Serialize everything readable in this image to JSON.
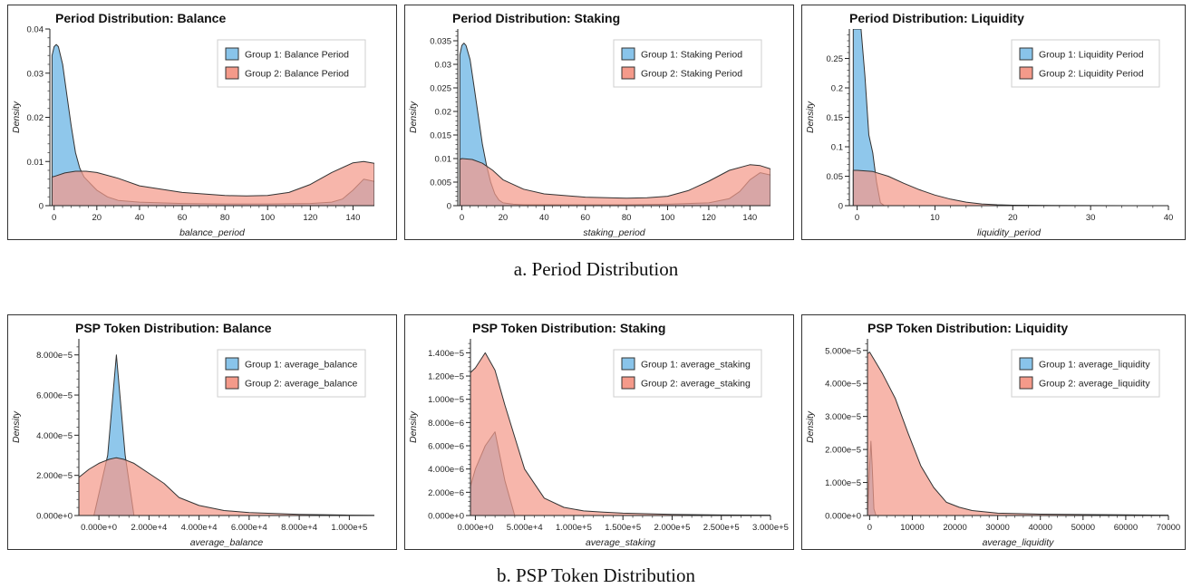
{
  "captions": {
    "top": "a. Period Distribution",
    "bottom": "b. PSP Token Distribution"
  },
  "colors": {
    "group1": "#89c4ea",
    "group2": "#f49a8a",
    "overlap": "#a88584"
  },
  "chart_data": [
    {
      "type": "area",
      "title": "Period Distribution: Balance",
      "xlabel": "balance_period",
      "ylabel": "Density",
      "xlim": [
        -2,
        150
      ],
      "ylim": [
        0,
        0.04
      ],
      "xticks": [
        0,
        20,
        40,
        60,
        80,
        100,
        120,
        140
      ],
      "xtick_labels": [
        "0",
        "20",
        "40",
        "60",
        "80",
        "100",
        "120",
        "140"
      ],
      "yticks": [
        0,
        0.01,
        0.02,
        0.03,
        0.04
      ],
      "ytick_labels": [
        "0",
        "0.01",
        "0.02",
        "0.03",
        "0.04"
      ],
      "legend": "top-right",
      "series": [
        {
          "name": "Group 1: Balance Period",
          "x": [
            -1,
            0,
            1,
            2,
            4,
            6,
            8,
            10,
            12,
            14,
            16,
            18,
            20,
            25,
            30,
            40,
            60,
            80,
            100,
            120,
            130,
            135,
            140,
            145,
            150
          ],
          "y": [
            0.034,
            0.036,
            0.0365,
            0.036,
            0.032,
            0.025,
            0.018,
            0.012,
            0.0085,
            0.0065,
            0.0055,
            0.0045,
            0.0035,
            0.002,
            0.0012,
            0.0008,
            0.0005,
            0.0004,
            0.0004,
            0.0005,
            0.0008,
            0.0015,
            0.0035,
            0.006,
            0.0055
          ]
        },
        {
          "name": "Group 2: Balance Period",
          "x": [
            -1,
            0,
            5,
            10,
            15,
            20,
            30,
            40,
            60,
            80,
            90,
            100,
            110,
            120,
            130,
            140,
            145,
            150
          ],
          "y": [
            0.0065,
            0.0066,
            0.0074,
            0.0078,
            0.0078,
            0.0075,
            0.0062,
            0.0045,
            0.003,
            0.0023,
            0.0022,
            0.0023,
            0.003,
            0.0048,
            0.0075,
            0.0097,
            0.01,
            0.0096
          ]
        }
      ]
    },
    {
      "type": "area",
      "title": "Period Distribution: Staking",
      "xlabel": "staking_period",
      "ylabel": "Density",
      "xlim": [
        -2,
        150
      ],
      "ylim": [
        0,
        0.0375
      ],
      "xticks": [
        0,
        20,
        40,
        60,
        80,
        100,
        120,
        140
      ],
      "xtick_labels": [
        "0",
        "20",
        "40",
        "60",
        "80",
        "100",
        "120",
        "140"
      ],
      "yticks": [
        0,
        0.005,
        0.01,
        0.015,
        0.02,
        0.025,
        0.03,
        0.035
      ],
      "ytick_labels": [
        "0",
        "0.005",
        "0.01",
        "0.015",
        "0.02",
        "0.025",
        "0.03",
        "0.035"
      ],
      "legend": "top-right",
      "series": [
        {
          "name": "Group 1: Staking Period",
          "x": [
            -1,
            0,
            1,
            2,
            4,
            6,
            8,
            10,
            12,
            14,
            16,
            18,
            20,
            25,
            30,
            40,
            60,
            80,
            100,
            120,
            130,
            135,
            140,
            145,
            150
          ],
          "y": [
            0.032,
            0.034,
            0.0345,
            0.034,
            0.031,
            0.025,
            0.019,
            0.013,
            0.0085,
            0.005,
            0.0025,
            0.0012,
            0.0006,
            0.0003,
            0.0002,
            0.0002,
            0.0002,
            0.0002,
            0.0003,
            0.0006,
            0.0015,
            0.003,
            0.0055,
            0.007,
            0.0065
          ]
        },
        {
          "name": "Group 2: Staking Period",
          "x": [
            -1,
            0,
            5,
            10,
            15,
            20,
            30,
            40,
            60,
            80,
            90,
            100,
            110,
            120,
            130,
            140,
            145,
            150
          ],
          "y": [
            0.0098,
            0.01,
            0.0098,
            0.009,
            0.0075,
            0.0055,
            0.0035,
            0.0025,
            0.0018,
            0.0016,
            0.0017,
            0.002,
            0.0032,
            0.0052,
            0.0075,
            0.0087,
            0.0085,
            0.0078
          ]
        }
      ]
    },
    {
      "type": "area",
      "title": "Period Distribution: Liquidity",
      "xlabel": "liquidity_period",
      "ylabel": "Density",
      "xlim": [
        -1,
        40
      ],
      "ylim": [
        0,
        0.3
      ],
      "xticks": [
        0,
        10,
        20,
        30,
        40
      ],
      "xtick_labels": [
        "0",
        "10",
        "20",
        "30",
        "40"
      ],
      "yticks": [
        0,
        0.05,
        0.1,
        0.15,
        0.2,
        0.25
      ],
      "ytick_labels": [
        "0",
        "0.05",
        "0.1",
        "0.15",
        "0.2",
        "0.25"
      ],
      "legend": "top-right",
      "series": [
        {
          "name": "Group 1: Liquidity Period",
          "x": [
            -0.5,
            0,
            0.5,
            1,
            1.5,
            2,
            2.5,
            3,
            3.5,
            5,
            40
          ],
          "y": [
            0.3,
            0.3,
            0.3,
            0.22,
            0.12,
            0.09,
            0.04,
            0.005,
            0.0,
            0.0,
            0.0
          ]
        },
        {
          "name": "Group 2: Liquidity Period",
          "x": [
            -0.5,
            0,
            2,
            4,
            6,
            8,
            10,
            12,
            14,
            16,
            18,
            20,
            25,
            30,
            35,
            40
          ],
          "y": [
            0.06,
            0.06,
            0.058,
            0.05,
            0.038,
            0.027,
            0.018,
            0.011,
            0.006,
            0.003,
            0.0015,
            0.0008,
            0.0003,
            0.0001,
            0.0,
            0.0
          ]
        }
      ]
    },
    {
      "type": "area",
      "title": "PSP Token Distribution: Balance",
      "xlabel": "average_balance",
      "ylabel": "Density",
      "xlim": [
        -8000,
        110000
      ],
      "ylim": [
        0,
        8.8e-05
      ],
      "xticks": [
        0,
        20000,
        40000,
        60000,
        80000,
        100000
      ],
      "xtick_labels": [
        "0.000e+0",
        "2.000e+4",
        "4.000e+4",
        "6.000e+4",
        "8.000e+4",
        "1.000e+5"
      ],
      "yticks": [
        0,
        2e-05,
        4e-05,
        6e-05,
        8e-05
      ],
      "ytick_labels": [
        "0.000e+0",
        "2.000e−5",
        "4.000e−5",
        "6.000e−5",
        "8.000e−5"
      ],
      "legend": "top-right",
      "series": [
        {
          "name": "Group 1: average_balance",
          "x": [
            -2000,
            3500,
            7000,
            10500,
            14000,
            110000
          ],
          "y": [
            0,
            3e-05,
            8e-05,
            3e-05,
            0,
            0
          ]
        },
        {
          "name": "Group 2: average_balance",
          "x": [
            -8000,
            -4000,
            0,
            4000,
            7000,
            10000,
            14000,
            20000,
            26000,
            32000,
            40000,
            50000,
            60000,
            70000,
            80000,
            90000,
            100000,
            110000
          ],
          "y": [
            1.9e-05,
            2.3e-05,
            2.6e-05,
            2.8e-05,
            2.88e-05,
            2.8e-05,
            2.6e-05,
            2.1e-05,
            1.6e-05,
            9e-06,
            5e-06,
            2.5e-06,
            1.5e-06,
            1e-06,
            6e-07,
            4e-07,
            2e-07,
            1e-07
          ]
        }
      ]
    },
    {
      "type": "area",
      "title": "PSP Token Distribution: Staking",
      "xlabel": "average_staking",
      "ylabel": "Density",
      "xlim": [
        -5000,
        300000
      ],
      "ylim": [
        0,
        1.52e-05
      ],
      "xticks": [
        0,
        50000,
        100000,
        150000,
        200000,
        250000,
        300000
      ],
      "xtick_labels": [
        "0.000e+0",
        "5.000e+4",
        "1.000e+5",
        "1.500e+5",
        "2.000e+5",
        "2.500e+5",
        "3.000e+5"
      ],
      "yticks": [
        0,
        2e-06,
        4e-06,
        6e-06,
        8e-06,
        1e-05,
        1.2e-05,
        1.4e-05
      ],
      "ytick_labels": [
        "0.000e+0",
        "2.000e−6",
        "4.000e−6",
        "6.000e−6",
        "8.000e−6",
        "1.000e−5",
        "1.200e−5",
        "1.400e−5"
      ],
      "legend": "top-right",
      "series": [
        {
          "name": "Group 1: average_staking",
          "x": [
            -5000,
            0,
            10000,
            20000,
            30000,
            40000,
            300000
          ],
          "y": [
            2.5e-06,
            4e-06,
            6e-06,
            7.2e-06,
            3e-06,
            0,
            0
          ]
        },
        {
          "name": "Group 2: average_staking",
          "x": [
            -5000,
            0,
            10000,
            20000,
            30000,
            50000,
            70000,
            90000,
            110000,
            130000,
            150000,
            200000,
            250000,
            300000
          ],
          "y": [
            1.23e-05,
            1.27e-05,
            1.4e-05,
            1.25e-05,
            9.5e-06,
            4e-06,
            1.5e-06,
            7e-07,
            4e-07,
            3e-07,
            2e-07,
            1e-07,
            5e-08,
            3e-08
          ]
        }
      ]
    },
    {
      "type": "area",
      "title": "PSP Token Distribution: Liquidity",
      "xlabel": "average_liquidity",
      "ylabel": "Density",
      "xlim": [
        -500,
        70000
      ],
      "ylim": [
        0,
        5.35e-05
      ],
      "xticks": [
        0,
        10000,
        20000,
        30000,
        40000,
        50000,
        60000,
        70000
      ],
      "xtick_labels": [
        "0",
        "10000",
        "20000",
        "30000",
        "40000",
        "50000",
        "60000",
        "70000"
      ],
      "yticks": [
        0,
        1e-05,
        2e-05,
        3e-05,
        4e-05,
        5e-05
      ],
      "ytick_labels": [
        "0.000e+0",
        "1.000e−5",
        "2.000e−5",
        "3.000e−5",
        "4.000e−5",
        "5.000e−5"
      ],
      "legend": "top-right",
      "series": [
        {
          "name": "Group 1: average_liquidity",
          "x": [
            -500,
            0,
            300,
            600,
            1000,
            1500,
            70000
          ],
          "y": [
            0,
            1.5e-05,
            2.25e-05,
            1.5e-05,
            2e-06,
            0,
            0
          ]
        },
        {
          "name": "Group 2: average_liquidity",
          "x": [
            -500,
            0,
            3000,
            6000,
            9000,
            12000,
            15000,
            18000,
            21000,
            24000,
            30000,
            40000,
            50000,
            60000,
            70000
          ],
          "y": [
            4.9e-05,
            4.95e-05,
            4.3e-05,
            3.55e-05,
            2.5e-05,
            1.5e-05,
            8.5e-06,
            4e-06,
            2.5e-06,
            1.5e-06,
            7e-07,
            4e-07,
            3e-07,
            2e-07,
            1e-07
          ]
        }
      ]
    }
  ]
}
